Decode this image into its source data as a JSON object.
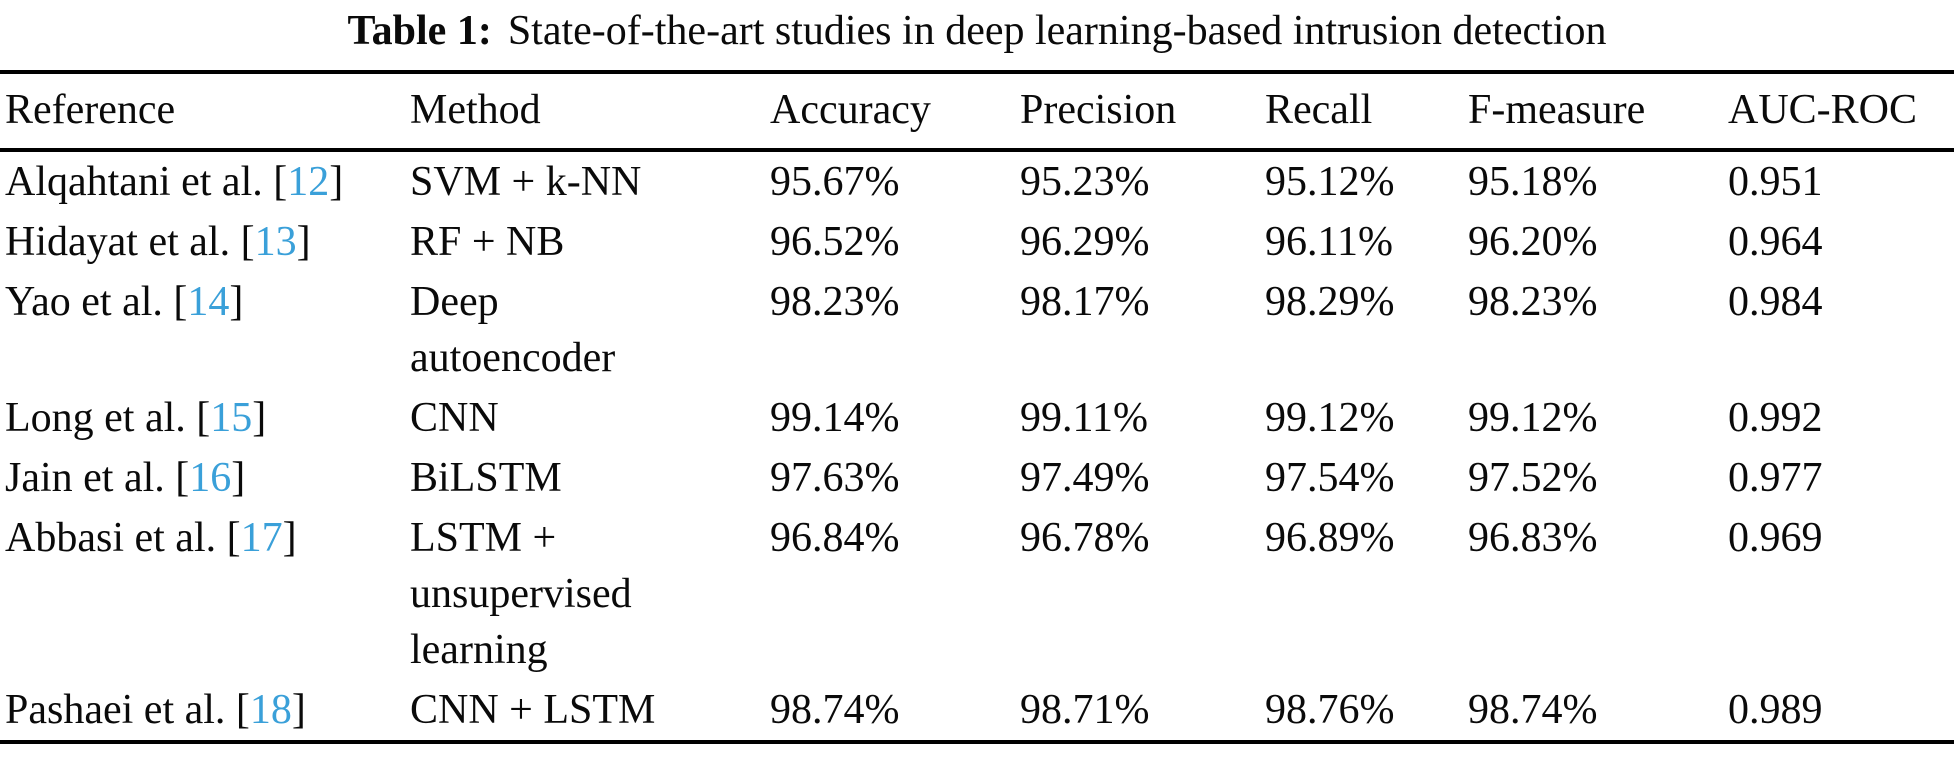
{
  "title": {
    "label": "Table 1:",
    "text": "State-of-the-art studies in deep learning-based intrusion detection"
  },
  "table": {
    "columns": [
      "Reference",
      "Method",
      "Accuracy",
      "Precision",
      "Recall",
      "F-measure",
      "AUC-ROC"
    ],
    "citation_brackets": [
      "[",
      "]"
    ],
    "rows": [
      {
        "authors": "Alqahtani et al.",
        "citation_number": "12",
        "method_lines": [
          "SVM + k-NN"
        ],
        "accuracy": "95.67%",
        "precision": "95.23%",
        "recall": "95.12%",
        "f_measure": "95.18%",
        "auc_roc": "0.951"
      },
      {
        "authors": "Hidayat et al.",
        "citation_number": "13",
        "method_lines": [
          "RF + NB"
        ],
        "accuracy": "96.52%",
        "precision": "96.29%",
        "recall": "96.11%",
        "f_measure": "96.20%",
        "auc_roc": "0.964"
      },
      {
        "authors": "Yao et al.",
        "citation_number": "14",
        "method_lines": [
          "Deep",
          "autoencoder"
        ],
        "accuracy": "98.23%",
        "precision": "98.17%",
        "recall": "98.29%",
        "f_measure": "98.23%",
        "auc_roc": "0.984"
      },
      {
        "authors": "Long et al.",
        "citation_number": "15",
        "method_lines": [
          "CNN"
        ],
        "accuracy": "99.14%",
        "precision": "99.11%",
        "recall": "99.12%",
        "f_measure": "99.12%",
        "auc_roc": "0.992"
      },
      {
        "authors": "Jain et al.",
        "citation_number": "16",
        "method_lines": [
          "BiLSTM"
        ],
        "accuracy": "97.63%",
        "precision": "97.49%",
        "recall": "97.54%",
        "f_measure": "97.52%",
        "auc_roc": "0.977"
      },
      {
        "authors": "Abbasi et al.",
        "citation_number": "17",
        "method_lines": [
          "LSTM +",
          "unsupervised",
          "learning"
        ],
        "accuracy": "96.84%",
        "precision": "96.78%",
        "recall": "96.89%",
        "f_measure": "96.83%",
        "auc_roc": "0.969"
      },
      {
        "authors": "Pashaei et al.",
        "citation_number": "18",
        "method_lines": [
          "CNN + LSTM"
        ],
        "accuracy": "98.74%",
        "precision": "98.71%",
        "recall": "98.76%",
        "f_measure": "98.74%",
        "auc_roc": "0.989"
      }
    ]
  },
  "colors": {
    "citation_link": "#3aa0d9",
    "text": "#0a0a0a",
    "rule": "#000000",
    "background": "#ffffff"
  }
}
